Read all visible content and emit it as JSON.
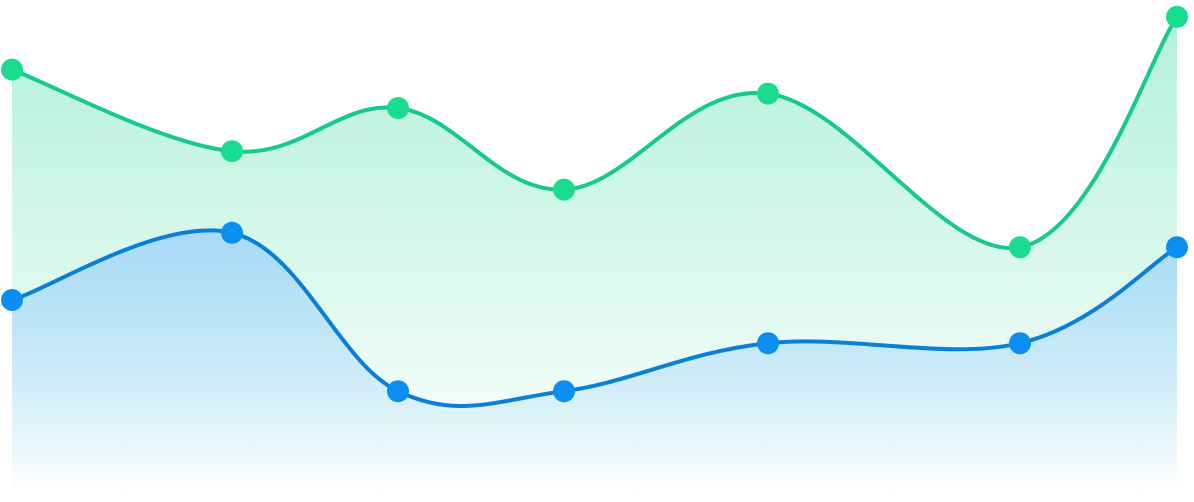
{
  "chart_data": {
    "type": "area",
    "x": [
      1,
      2,
      3,
      4,
      5,
      6,
      7
    ],
    "ylim": [
      0,
      100
    ],
    "grid": false,
    "series": [
      {
        "values": [
          88,
          71,
          80,
          63,
          83,
          51,
          99
        ],
        "color": "#17c98a",
        "point_color": "#19dc8e",
        "fill_color": "#b2f1d9"
      },
      {
        "values": [
          40,
          54,
          21,
          21,
          31,
          31,
          51
        ],
        "color": "#0a7fd9",
        "point_color": "#0b8ef0",
        "fill_color": "#a9d9f9"
      }
    ]
  }
}
